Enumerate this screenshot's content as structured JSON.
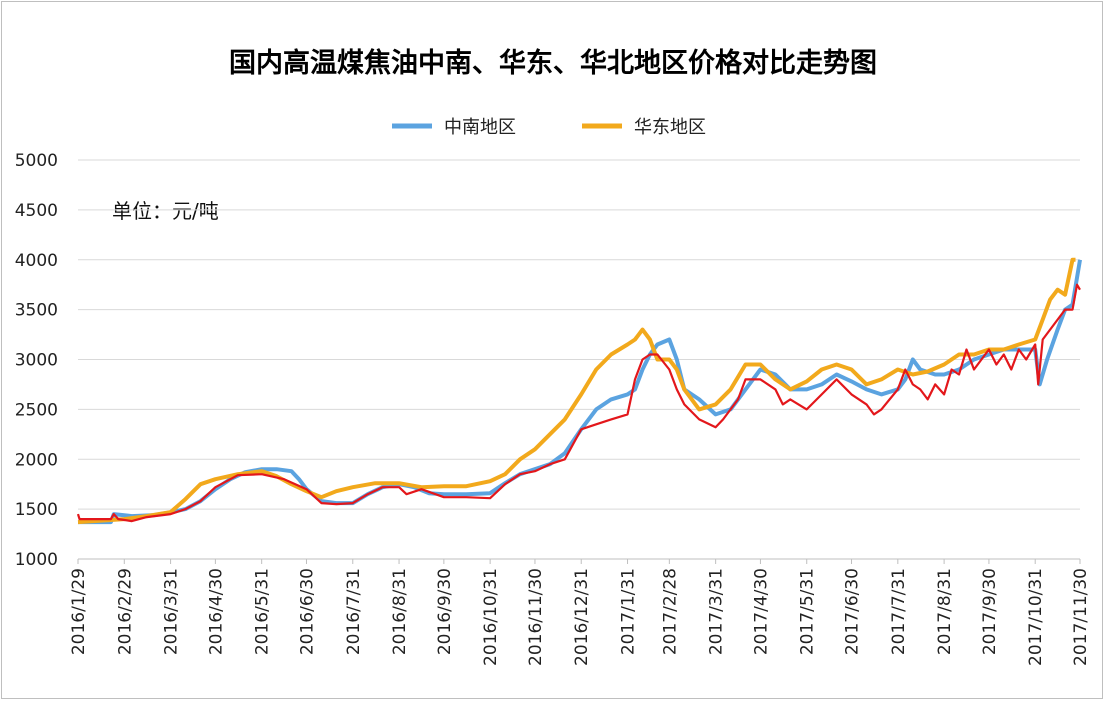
{
  "chart_data": {
    "type": "line",
    "title": "国内高温煤焦油中南、华东、华北地区价格对比走势图",
    "unit_note": "单位：元/吨",
    "xlabel": "",
    "ylabel": "",
    "ylim": [
      1000,
      5000
    ],
    "yticks": [
      "1000",
      "1500",
      "2000",
      "2500",
      "3000",
      "3500",
      "4000",
      "4500",
      "5000"
    ],
    "grid": true,
    "legend_position": "top-center",
    "xlim": [
      "2016-01-29",
      "2017-11-30"
    ],
    "x_tick_labels": [
      {
        "date": "2016-01-29",
        "label": "2016/1/29"
      },
      {
        "date": "2016-02-29",
        "label": "2016/2/29"
      },
      {
        "date": "2016-03-31",
        "label": "2016/3/31"
      },
      {
        "date": "2016-04-30",
        "label": "2016/4/30"
      },
      {
        "date": "2016-05-31",
        "label": "2016/5/31"
      },
      {
        "date": "2016-06-30",
        "label": "2016/6/30"
      },
      {
        "date": "2016-07-31",
        "label": "2016/7/31"
      },
      {
        "date": "2016-08-31",
        "label": "2016/8/31"
      },
      {
        "date": "2016-09-30",
        "label": "2016/9/30"
      },
      {
        "date": "2016-10-31",
        "label": "2016/10/31"
      },
      {
        "date": "2016-11-30",
        "label": "2016/11/30"
      },
      {
        "date": "2016-12-31",
        "label": "2016/12/31"
      },
      {
        "date": "2017-01-31",
        "label": "2017/1/31"
      },
      {
        "date": "2017-02-28",
        "label": "2017/2/28"
      },
      {
        "date": "2017-03-31",
        "label": "2017/3/31"
      },
      {
        "date": "2017-04-30",
        "label": "2017/4/30"
      },
      {
        "date": "2017-05-31",
        "label": "2017/5/31"
      },
      {
        "date": "2017-06-30",
        "label": "2017/6/30"
      },
      {
        "date": "2017-07-31",
        "label": "2017/7/31"
      },
      {
        "date": "2017-08-31",
        "label": "2017/8/31"
      },
      {
        "date": "2017-09-30",
        "label": "2017/9/30"
      },
      {
        "date": "2017-10-31",
        "label": "2017/10/31"
      },
      {
        "date": "2017-11-30",
        "label": "2017/11/30"
      }
    ],
    "series": [
      {
        "name": "中南地区",
        "color": "#5ba3e0",
        "points": [
          [
            "2016-01-29",
            1370
          ],
          [
            "2016-02-20",
            1370
          ],
          [
            "2016-02-22",
            1450
          ],
          [
            "2016-03-05",
            1430
          ],
          [
            "2016-03-20",
            1440
          ],
          [
            "2016-04-01",
            1470
          ],
          [
            "2016-04-10",
            1500
          ],
          [
            "2016-04-20",
            1580
          ],
          [
            "2016-04-30",
            1700
          ],
          [
            "2016-05-10",
            1800
          ],
          [
            "2016-05-20",
            1870
          ],
          [
            "2016-05-31",
            1900
          ],
          [
            "2016-06-10",
            1900
          ],
          [
            "2016-06-20",
            1880
          ],
          [
            "2016-06-25",
            1800
          ],
          [
            "2016-06-30",
            1700
          ],
          [
            "2016-07-05",
            1640
          ],
          [
            "2016-07-10",
            1580
          ],
          [
            "2016-07-20",
            1560
          ],
          [
            "2016-07-31",
            1560
          ],
          [
            "2016-08-10",
            1650
          ],
          [
            "2016-08-20",
            1720
          ],
          [
            "2016-08-31",
            1750
          ],
          [
            "2016-09-10",
            1720
          ],
          [
            "2016-09-20",
            1660
          ],
          [
            "2016-09-30",
            1650
          ],
          [
            "2016-10-15",
            1650
          ],
          [
            "2016-10-31",
            1660
          ],
          [
            "2016-11-10",
            1760
          ],
          [
            "2016-11-20",
            1850
          ],
          [
            "2016-11-30",
            1900
          ],
          [
            "2016-12-10",
            1950
          ],
          [
            "2016-12-20",
            2060
          ],
          [
            "2016-12-31",
            2300
          ],
          [
            "2017-01-10",
            2500
          ],
          [
            "2017-01-20",
            2600
          ],
          [
            "2017-01-31",
            2650
          ],
          [
            "2017-02-05",
            2700
          ],
          [
            "2017-02-10",
            2900
          ],
          [
            "2017-02-15",
            3050
          ],
          [
            "2017-02-20",
            3150
          ],
          [
            "2017-02-28",
            3200
          ],
          [
            "2017-03-05",
            3000
          ],
          [
            "2017-03-10",
            2700
          ],
          [
            "2017-03-20",
            2600
          ],
          [
            "2017-03-31",
            2450
          ],
          [
            "2017-04-10",
            2500
          ],
          [
            "2017-04-20",
            2700
          ],
          [
            "2017-04-30",
            2900
          ],
          [
            "2017-05-10",
            2850
          ],
          [
            "2017-05-20",
            2700
          ],
          [
            "2017-05-31",
            2700
          ],
          [
            "2017-06-10",
            2750
          ],
          [
            "2017-06-20",
            2850
          ],
          [
            "2017-06-30",
            2780
          ],
          [
            "2017-07-10",
            2700
          ],
          [
            "2017-07-20",
            2650
          ],
          [
            "2017-07-31",
            2700
          ],
          [
            "2017-08-05",
            2800
          ],
          [
            "2017-08-10",
            3000
          ],
          [
            "2017-08-15",
            2900
          ],
          [
            "2017-08-25",
            2850
          ],
          [
            "2017-08-31",
            2850
          ],
          [
            "2017-09-10",
            2900
          ],
          [
            "2017-09-20",
            3000
          ],
          [
            "2017-09-30",
            3050
          ],
          [
            "2017-10-10",
            3100
          ],
          [
            "2017-10-20",
            3100
          ],
          [
            "2017-10-31",
            3100
          ],
          [
            "2017-11-03",
            2750
          ],
          [
            "2017-11-08",
            3000
          ],
          [
            "2017-11-15",
            3300
          ],
          [
            "2017-11-20",
            3500
          ],
          [
            "2017-11-25",
            3550
          ],
          [
            "2017-11-30",
            4000
          ]
        ]
      },
      {
        "name": "华东地区",
        "color": "#f2a91c",
        "points": [
          [
            "2016-01-29",
            1370
          ],
          [
            "2016-02-29",
            1400
          ],
          [
            "2016-03-15",
            1430
          ],
          [
            "2016-03-31",
            1470
          ],
          [
            "2016-04-10",
            1600
          ],
          [
            "2016-04-20",
            1750
          ],
          [
            "2016-04-30",
            1800
          ],
          [
            "2016-05-15",
            1850
          ],
          [
            "2016-05-31",
            1880
          ],
          [
            "2016-06-10",
            1830
          ],
          [
            "2016-06-20",
            1750
          ],
          [
            "2016-06-30",
            1680
          ],
          [
            "2016-07-10",
            1620
          ],
          [
            "2016-07-20",
            1680
          ],
          [
            "2016-07-31",
            1720
          ],
          [
            "2016-08-15",
            1760
          ],
          [
            "2016-08-31",
            1760
          ],
          [
            "2016-09-15",
            1720
          ],
          [
            "2016-09-30",
            1730
          ],
          [
            "2016-10-15",
            1730
          ],
          [
            "2016-10-31",
            1780
          ],
          [
            "2016-11-10",
            1850
          ],
          [
            "2016-11-20",
            2000
          ],
          [
            "2016-11-30",
            2100
          ],
          [
            "2016-12-10",
            2250
          ],
          [
            "2016-12-20",
            2400
          ],
          [
            "2016-12-31",
            2650
          ],
          [
            "2017-01-10",
            2900
          ],
          [
            "2017-01-20",
            3050
          ],
          [
            "2017-01-31",
            3150
          ],
          [
            "2017-02-05",
            3200
          ],
          [
            "2017-02-10",
            3300
          ],
          [
            "2017-02-15",
            3200
          ],
          [
            "2017-02-20",
            3000
          ],
          [
            "2017-02-28",
            3000
          ],
          [
            "2017-03-05",
            2900
          ],
          [
            "2017-03-10",
            2700
          ],
          [
            "2017-03-20",
            2500
          ],
          [
            "2017-03-31",
            2550
          ],
          [
            "2017-04-10",
            2700
          ],
          [
            "2017-04-20",
            2950
          ],
          [
            "2017-04-30",
            2950
          ],
          [
            "2017-05-10",
            2800
          ],
          [
            "2017-05-20",
            2700
          ],
          [
            "2017-05-31",
            2780
          ],
          [
            "2017-06-10",
            2900
          ],
          [
            "2017-06-20",
            2950
          ],
          [
            "2017-06-30",
            2900
          ],
          [
            "2017-07-10",
            2750
          ],
          [
            "2017-07-20",
            2800
          ],
          [
            "2017-07-31",
            2900
          ],
          [
            "2017-08-10",
            2850
          ],
          [
            "2017-08-20",
            2880
          ],
          [
            "2017-08-31",
            2950
          ],
          [
            "2017-09-10",
            3050
          ],
          [
            "2017-09-20",
            3050
          ],
          [
            "2017-09-30",
            3100
          ],
          [
            "2017-10-10",
            3100
          ],
          [
            "2017-10-20",
            3150
          ],
          [
            "2017-10-31",
            3200
          ],
          [
            "2017-11-05",
            3400
          ],
          [
            "2017-11-10",
            3600
          ],
          [
            "2017-11-15",
            3700
          ],
          [
            "2017-11-20",
            3650
          ],
          [
            "2017-11-25",
            4000
          ],
          [
            "2017-11-27",
            4000
          ]
        ]
      },
      {
        "name": "华北地区",
        "color": "#e3171b",
        "points": [
          [
            "2016-01-29",
            1450
          ],
          [
            "2016-01-30",
            1400
          ],
          [
            "2016-02-20",
            1400
          ],
          [
            "2016-02-22",
            1450
          ],
          [
            "2016-02-25",
            1400
          ],
          [
            "2016-03-05",
            1380
          ],
          [
            "2016-03-15",
            1420
          ],
          [
            "2016-03-31",
            1450
          ],
          [
            "2016-04-10",
            1500
          ],
          [
            "2016-04-20",
            1580
          ],
          [
            "2016-04-30",
            1720
          ],
          [
            "2016-05-15",
            1840
          ],
          [
            "2016-05-31",
            1850
          ],
          [
            "2016-06-15",
            1800
          ],
          [
            "2016-06-30",
            1700
          ],
          [
            "2016-07-10",
            1560
          ],
          [
            "2016-07-20",
            1550
          ],
          [
            "2016-07-31",
            1560
          ],
          [
            "2016-08-10",
            1650
          ],
          [
            "2016-08-20",
            1720
          ],
          [
            "2016-08-31",
            1720
          ],
          [
            "2016-09-05",
            1650
          ],
          [
            "2016-09-15",
            1700
          ],
          [
            "2016-09-30",
            1620
          ],
          [
            "2016-10-15",
            1620
          ],
          [
            "2016-10-31",
            1610
          ],
          [
            "2016-11-10",
            1750
          ],
          [
            "2016-11-20",
            1850
          ],
          [
            "2016-11-30",
            1880
          ],
          [
            "2016-12-10",
            1950
          ],
          [
            "2016-12-20",
            2000
          ],
          [
            "2016-12-31",
            2300
          ],
          [
            "2017-01-10",
            2350
          ],
          [
            "2017-01-20",
            2400
          ],
          [
            "2017-01-31",
            2450
          ],
          [
            "2017-02-05",
            2800
          ],
          [
            "2017-02-10",
            3000
          ],
          [
            "2017-02-15",
            3050
          ],
          [
            "2017-02-20",
            3050
          ],
          [
            "2017-02-28",
            2900
          ],
          [
            "2017-03-05",
            2700
          ],
          [
            "2017-03-10",
            2550
          ],
          [
            "2017-03-20",
            2400
          ],
          [
            "2017-03-31",
            2320
          ],
          [
            "2017-04-05",
            2400
          ],
          [
            "2017-04-15",
            2600
          ],
          [
            "2017-04-20",
            2800
          ],
          [
            "2017-04-30",
            2800
          ],
          [
            "2017-05-10",
            2700
          ],
          [
            "2017-05-15",
            2550
          ],
          [
            "2017-05-20",
            2600
          ],
          [
            "2017-05-31",
            2500
          ],
          [
            "2017-06-10",
            2650
          ],
          [
            "2017-06-20",
            2800
          ],
          [
            "2017-06-30",
            2650
          ],
          [
            "2017-07-10",
            2550
          ],
          [
            "2017-07-15",
            2450
          ],
          [
            "2017-07-20",
            2500
          ],
          [
            "2017-07-31",
            2700
          ],
          [
            "2017-08-05",
            2900
          ],
          [
            "2017-08-10",
            2750
          ],
          [
            "2017-08-15",
            2700
          ],
          [
            "2017-08-20",
            2600
          ],
          [
            "2017-08-25",
            2750
          ],
          [
            "2017-08-31",
            2650
          ],
          [
            "2017-09-05",
            2900
          ],
          [
            "2017-09-10",
            2850
          ],
          [
            "2017-09-15",
            3100
          ],
          [
            "2017-09-20",
            2900
          ],
          [
            "2017-09-30",
            3100
          ],
          [
            "2017-10-05",
            2950
          ],
          [
            "2017-10-10",
            3050
          ],
          [
            "2017-10-15",
            2900
          ],
          [
            "2017-10-20",
            3100
          ],
          [
            "2017-10-25",
            3000
          ],
          [
            "2017-10-31",
            3150
          ],
          [
            "2017-11-02",
            2750
          ],
          [
            "2017-11-05",
            3200
          ],
          [
            "2017-11-10",
            3300
          ],
          [
            "2017-11-15",
            3400
          ],
          [
            "2017-11-20",
            3500
          ],
          [
            "2017-11-25",
            3500
          ],
          [
            "2017-11-28",
            3750
          ],
          [
            "2017-11-30",
            3700
          ]
        ]
      }
    ]
  }
}
